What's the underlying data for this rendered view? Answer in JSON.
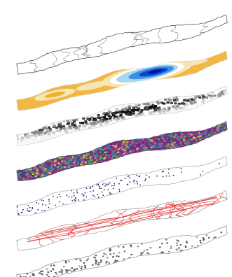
{
  "figure": {
    "layers": [
      {
        "id": "boundaries",
        "kind": "outline",
        "stroke": "#555555",
        "fill": "#ffffff"
      },
      {
        "id": "elevation-contours",
        "kind": "heatmap",
        "palette": [
          "#f0b030",
          "#f6e6b4",
          "#ffffff",
          "#a8d8f0",
          "#3a8fe0",
          "#1040d0",
          "#0010a0"
        ]
      },
      {
        "id": "terrain-shading",
        "kind": "heatmap",
        "palette": [
          "#f4f4f4",
          "#c8c8c8",
          "#8a8a8a",
          "#3c3c3c",
          "#101010"
        ]
      },
      {
        "id": "land-classes",
        "kind": "categorical",
        "palette": [
          "#7a2a7a",
          "#3fa070",
          "#c03a90",
          "#2a8a9a",
          "#6aa83a",
          "#a05ab0",
          "#d8c838",
          "#3060a8"
        ]
      },
      {
        "id": "point-sites",
        "kind": "points",
        "stroke": "#999999",
        "color": "#1a2a6a"
      },
      {
        "id": "red-network",
        "kind": "network",
        "stroke": "#888888",
        "color": "#e04040"
      },
      {
        "id": "gray-mosaic",
        "kind": "mosaic",
        "stroke": "#777777",
        "color": "#444444"
      }
    ]
  }
}
